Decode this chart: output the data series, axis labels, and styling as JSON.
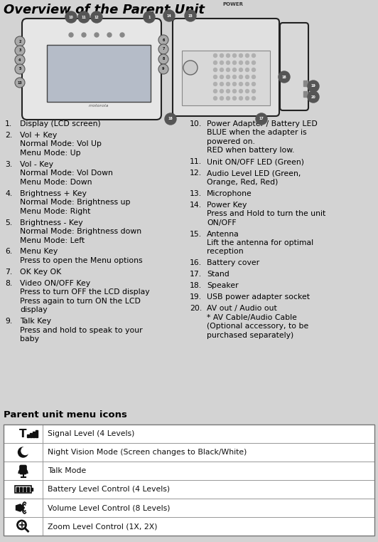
{
  "title": "Overview of the Parent Unit",
  "bg_color": "#d3d3d3",
  "text_color": "#000000",
  "title_fontsize": 13,
  "body_fontsize": 7.8,
  "section2_title": "Parent unit menu icons",
  "left_col_items": [
    [
      "1.",
      "Display (LCD screen)"
    ],
    [
      "2.",
      "Vol + Key\n   Normal Mode: Vol Up\n   Menu Mode: Up"
    ],
    [
      "3.",
      "Vol - Key\n   Normal Mode: Vol Down\n   Menu Mode: Down"
    ],
    [
      "4.",
      "Brightness + Key\n   Normal Mode: Brightness up\n   Menu Mode: Right"
    ],
    [
      "5.",
      "Brightness - Key\n   Normal Mode: Brightness down\n   Menu Mode: Left"
    ],
    [
      "6.",
      "Menu Key\n   Press to open the Menu options"
    ],
    [
      "7.",
      "OK Key OK"
    ],
    [
      "8.",
      "Video ON/OFF Key\n   Press to turn OFF the LCD display\n   Press again to turn ON the LCD\n   display"
    ],
    [
      "9.",
      "Talk Key\n   Press and hold to speak to your\n   baby"
    ]
  ],
  "right_col_items": [
    [
      "10.",
      "Power Adapter / Battery LED\n     BLUE when the adapter is\n     powered on.\n     RED when battery low."
    ],
    [
      "11.",
      "Unit ON/OFF LED (Green)"
    ],
    [
      "12.",
      "Audio Level LED (Green,\n     Orange, Red, Red)"
    ],
    [
      "13.",
      "Microphone"
    ],
    [
      "14.",
      "Power Key\n     Press and Hold to turn the unit\n     ON/OFF"
    ],
    [
      "15.",
      "Antenna\n     Lift the antenna for optimal\n     reception"
    ],
    [
      "16.",
      "Battery cover"
    ],
    [
      "17.",
      "Stand"
    ],
    [
      "18.",
      "Speaker"
    ],
    [
      "19.",
      "USB power adapter socket"
    ],
    [
      "20.",
      "AV out / Audio out\n     * AV Cable/Audio Cable\n     (Optional accessory, to be\n     purchased separately)"
    ]
  ],
  "table_descriptions": [
    "Signal Level (4 Levels)",
    "Night Vision Mode (Screen changes to Black/White)",
    "Talk Mode",
    "Battery Level Control (4 Levels)",
    "Volume Level Control (8 Levels)",
    "Zoom Level Control (1X, 2X)"
  ]
}
